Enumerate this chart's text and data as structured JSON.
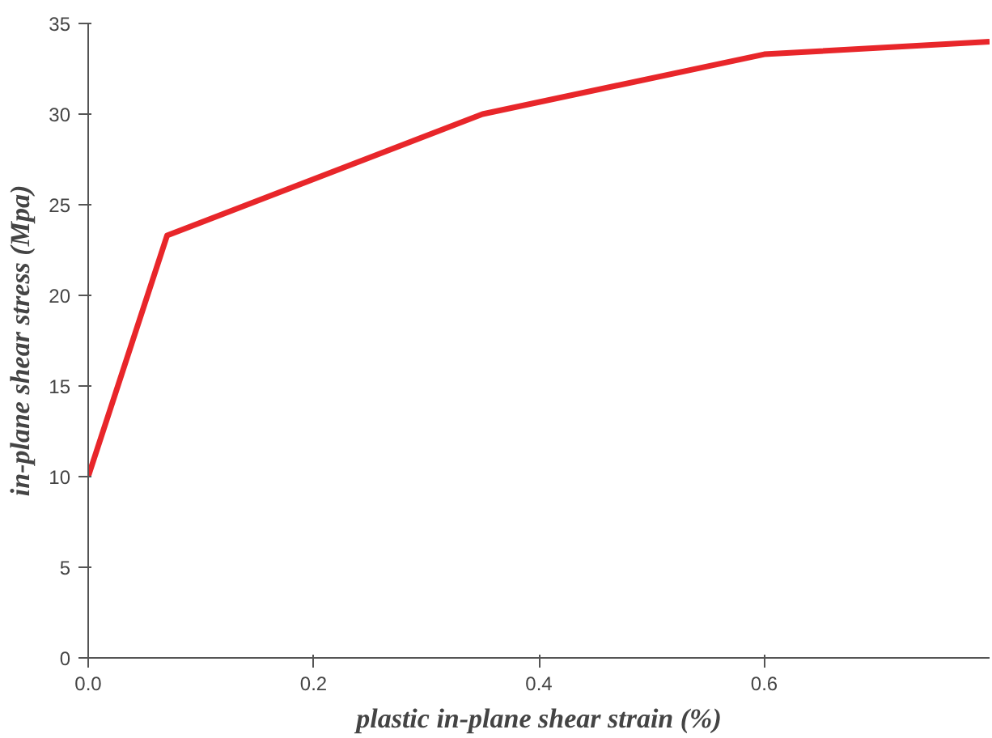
{
  "chart_data": {
    "type": "line",
    "xlabel": "plastic in-plane shear strain (%)",
    "ylabel": "in-plane shear stress (Mpa)",
    "x": [
      0,
      0.07,
      0.35,
      0.6,
      0.8
    ],
    "series": [
      {
        "color": "#e8262a",
        "values": [
          10,
          23.3,
          30,
          33.3,
          34
        ]
      }
    ],
    "xlim": [
      0,
      0.8
    ],
    "ylim": [
      0,
      35
    ],
    "xticks": [
      {
        "value": 0,
        "label": "0.0"
      },
      {
        "value": 0.2,
        "label": "0.2"
      },
      {
        "value": 0.4,
        "label": "0.4"
      },
      {
        "value": 0.6,
        "label": "0.6"
      }
    ],
    "yticks": [
      0,
      5,
      10,
      15,
      20,
      25,
      30,
      35
    ],
    "grid": false,
    "marker": "none",
    "line_style": "solid"
  }
}
